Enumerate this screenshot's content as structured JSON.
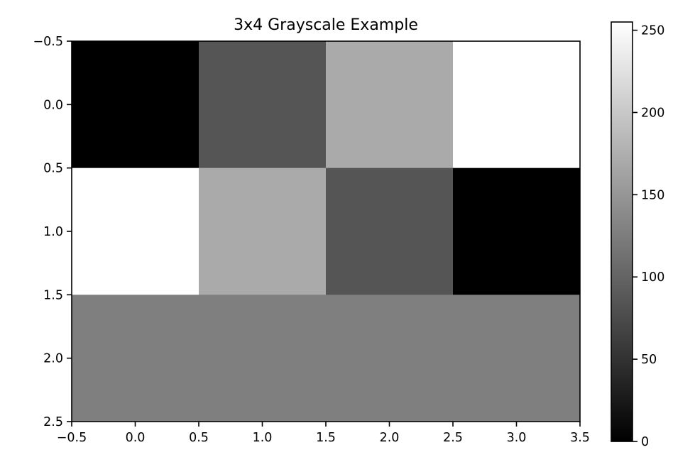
{
  "chart_data": {
    "type": "heatmap",
    "title": "3x4 Grayscale Example",
    "xlabel": "",
    "ylabel": "",
    "colormap": "gray",
    "vmin": 0,
    "vmax": 255,
    "matrix": [
      [
        0,
        85,
        170,
        255
      ],
      [
        255,
        170,
        85,
        0
      ],
      [
        127,
        127,
        127,
        127
      ]
    ],
    "xlim": [
      -0.5,
      3.5
    ],
    "ylim": [
      2.5,
      -0.5
    ],
    "x_ticks": [
      -0.5,
      0.0,
      0.5,
      1.0,
      1.5,
      2.0,
      2.5,
      3.0,
      3.5
    ],
    "x_tick_labels": [
      "−0.5",
      "0.0",
      "0.5",
      "1.0",
      "1.5",
      "2.0",
      "2.5",
      "3.0",
      "3.5"
    ],
    "y_ticks": [
      -0.5,
      0.0,
      0.5,
      1.0,
      1.5,
      2.0,
      2.5
    ],
    "y_tick_labels": [
      "−0.5",
      "0.0",
      "0.5",
      "1.0",
      "1.5",
      "2.0",
      "2.5"
    ],
    "colorbar": {
      "ticks": [
        0,
        50,
        100,
        150,
        200,
        250
      ],
      "tick_labels": [
        "0",
        "50",
        "100",
        "150",
        "200",
        "250"
      ]
    },
    "grid": false,
    "legend": "none"
  }
}
